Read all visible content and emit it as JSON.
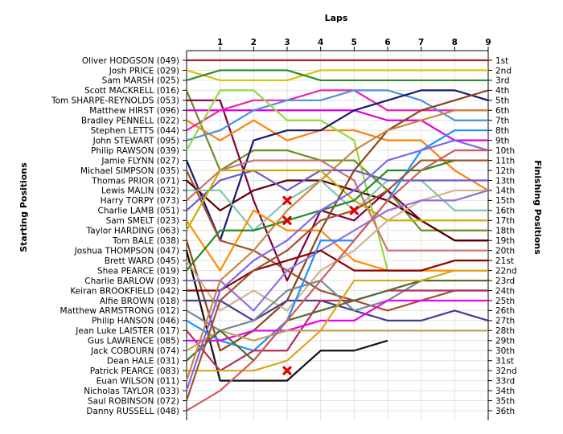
{
  "chart_data": {
    "type": "line",
    "title": "Laps",
    "ylabel_left": "Starting Positions",
    "ylabel_right": "Finishing Positions",
    "x_ticks": [
      1,
      2,
      3,
      4,
      5,
      6,
      7,
      8,
      9
    ],
    "xlim": [
      0,
      9
    ],
    "ylim": [
      1,
      36
    ],
    "grid": true,
    "starting_riders": [
      "Oliver HODGSON (049)",
      "Josh PRICE (029)",
      "Sam MARSH (025)",
      "Scott MACKRELL (016)",
      "Tom SHARPE-REYNOLDS (053)",
      "Matthew HIRST (096)",
      "Bradley PENNELL (022)",
      "Stephen LETTS (044)",
      "John STEWART (095)",
      "Philip RAWSON (039)",
      "Jamie FLYNN (027)",
      "Michael SIMPSON (035)",
      "Thomas PRIOR (071)",
      "Lewis MALIN (032)",
      "Harry TORPY (073)",
      "Charlie LAMB (051)",
      "Sam SMELT (023)",
      "Taylor HARDING (063)",
      "Tom BALE (038)",
      "Joshua THOMPSON (047)",
      "Brett WARD (045)",
      "Shea PEARCE (019)",
      "Charlie BARLOW (093)",
      "Keiran BROOKFIELD (042)",
      "Alfie BROWN (018)",
      "Matthew ARMSTRONG (012)",
      "Philip HANSON (046)",
      "Jean Luke LAISTER (017)",
      "Gus LAWRENCE (085)",
      "Jack COBOURN (074)",
      "Dean HALE (031)",
      "Patrick PEARCE (083)",
      "Euan WILSON (011)",
      "Nicholas TAYLOR (033)",
      "Saul ROBINSON (072)",
      "Danny RUSSELL (048)"
    ],
    "finishing_positions": [
      "1st",
      "2nd",
      "3rd",
      "4th",
      "5th",
      "6th",
      "7th",
      "8th",
      "9th",
      "10th",
      "11th",
      "12th",
      "13th",
      "14th",
      "15th",
      "16th",
      "17th",
      "18th",
      "19th",
      "20th",
      "21st",
      "22nd",
      "23rd",
      "24th",
      "25th",
      "26th",
      "27th",
      "28th",
      "29th",
      "30th",
      "31st",
      "32nd",
      "33rd",
      "34th",
      "35th",
      "36th"
    ],
    "series": [
      {
        "color": "#b22222",
        "positions": [
          1,
          1,
          1,
          1,
          1,
          1,
          1,
          1,
          1,
          1
        ]
      },
      {
        "color": "#d4c800",
        "positions": [
          2,
          3,
          3,
          3,
          2,
          2,
          2,
          2,
          2,
          2
        ]
      },
      {
        "color": "#2e8b2e",
        "positions": [
          3,
          2,
          2,
          2,
          3,
          3,
          3,
          3,
          3,
          3
        ]
      },
      {
        "color": "#6b8e23",
        "positions": [
          4,
          12,
          10,
          10,
          11,
          11,
          14,
          18,
          18,
          18
        ]
      },
      {
        "color": "#800040",
        "positions": [
          5,
          5,
          15,
          23,
          16,
          17,
          14,
          17,
          19,
          19
        ]
      },
      {
        "color": "#dd00dd",
        "positions": [
          6,
          6,
          6,
          6,
          6,
          6,
          7,
          7,
          9,
          9
        ]
      },
      {
        "color": "#ff7f0e",
        "positions": [
          7,
          9,
          7,
          9,
          8,
          8,
          9,
          9,
          12,
          14
        ]
      },
      {
        "color": "#ee22aa",
        "positions": [
          8,
          6,
          5,
          5,
          4,
          4,
          6,
          6,
          6,
          6
        ]
      },
      {
        "color": "#4a90d9",
        "positions": [
          9,
          8,
          6,
          5,
          5,
          4,
          4,
          5,
          7,
          7
        ]
      },
      {
        "color": "#8fdc3c",
        "positions": [
          10,
          4,
          4,
          7,
          7,
          9,
          22,
          22,
          22,
          22
        ]
      },
      {
        "color": "#191970",
        "positions": [
          11,
          19,
          9,
          8,
          8,
          6,
          5,
          4,
          4,
          5
        ]
      },
      {
        "color": "#a0522d",
        "positions": [
          12,
          19,
          20,
          22,
          24,
          25,
          26,
          25,
          24,
          24
        ]
      },
      {
        "color": "#5a0000",
        "positions": [
          13,
          16,
          14,
          13,
          13,
          14,
          15,
          17,
          19,
          19
        ]
      },
      {
        "color": "#7fc7b0",
        "positions": [
          14,
          14,
          18,
          15,
          13,
          16,
          13,
          13,
          16,
          16
        ]
      },
      {
        "color": "#cc7070",
        "positions": [
          15,
          12,
          11,
          11,
          11,
          13,
          20,
          20,
          20,
          20
        ]
      },
      {
        "color": "#6a5acd",
        "positions": [
          16,
          13,
          12,
          14,
          12,
          12,
          13,
          13,
          13,
          13
        ]
      },
      {
        "color": "#ff8c00",
        "positions": [
          17,
          22,
          16,
          18,
          18,
          21,
          22,
          22,
          22,
          22
        ]
      },
      {
        "color": "#ccaa00",
        "positions": [
          18,
          12,
          12,
          12,
          12,
          15,
          17,
          17,
          17,
          17
        ]
      },
      {
        "color": "#8b4513",
        "positions": [
          19,
          30,
          28,
          25,
          18,
          12,
          8,
          6,
          5,
          4
        ]
      },
      {
        "color": "#111111",
        "positions": [
          20,
          33,
          33,
          33,
          30,
          30,
          29
        ]
      },
      {
        "color": "#d2b48c",
        "positions": [
          21,
          26,
          24,
          26,
          22,
          20,
          17,
          15,
          14,
          14
        ]
      },
      {
        "color": "#228b22",
        "positions": [
          22,
          18,
          18,
          17,
          16,
          15,
          12,
          12,
          11,
          11
        ]
      },
      {
        "color": "#9370db",
        "positions": [
          23,
          23,
          26,
          22,
          20,
          18,
          16,
          15,
          15,
          14
        ]
      },
      {
        "color": "#8b0000",
        "positions": [
          24,
          24,
          22,
          21,
          20,
          22,
          22,
          22,
          21,
          21
        ]
      },
      {
        "color": "#483d8b",
        "positions": [
          25,
          25,
          27,
          25,
          25,
          26,
          27,
          27,
          26,
          27
        ]
      },
      {
        "color": "#778899",
        "positions": [
          26,
          28,
          27,
          24,
          23,
          26,
          25,
          23,
          23,
          23
        ]
      },
      {
        "color": "#1e90ff",
        "positions": [
          27,
          29,
          30,
          27,
          19,
          19,
          15,
          10,
          8,
          8
        ]
      },
      {
        "color": "#b03060",
        "positions": [
          28,
          32,
          30,
          30,
          25,
          25,
          24,
          24,
          24,
          24
        ]
      },
      {
        "color": "#ee00ee",
        "positions": [
          29,
          29,
          28,
          28,
          27,
          27,
          25,
          25,
          25,
          25
        ]
      },
      {
        "color": "#c0a060",
        "positions": [
          30,
          28,
          29,
          28,
          28,
          28,
          28,
          28,
          28,
          28
        ]
      },
      {
        "color": "#556b2f",
        "positions": [
          31,
          28,
          31,
          27,
          26,
          25,
          24,
          23,
          23,
          23
        ]
      },
      {
        "color": "#daa520",
        "positions": [
          32,
          32,
          32,
          31,
          28,
          23,
          23,
          23,
          22,
          22
        ]
      },
      {
        "color": "#cd853f",
        "positions": [
          33,
          23,
          20,
          16,
          13,
          10,
          8,
          7,
          6,
          6
        ]
      },
      {
        "color": "#7b68ee",
        "positions": [
          34,
          24,
          21,
          19,
          16,
          14,
          11,
          10,
          9,
          10
        ]
      },
      {
        "color": "#a0522d",
        "positions": [
          35,
          25,
          22,
          20,
          17,
          16,
          14,
          11,
          11,
          11
        ]
      },
      {
        "color": "#cd5c5c",
        "positions": [
          36,
          34,
          31,
          27,
          23,
          19,
          15,
          12,
          10,
          10
        ]
      }
    ],
    "retired_markers": [
      {
        "lap": 3,
        "position": 15
      },
      {
        "lap": 3,
        "position": 17
      },
      {
        "lap": 5,
        "position": 16
      },
      {
        "lap": 3,
        "position": 32
      }
    ]
  }
}
